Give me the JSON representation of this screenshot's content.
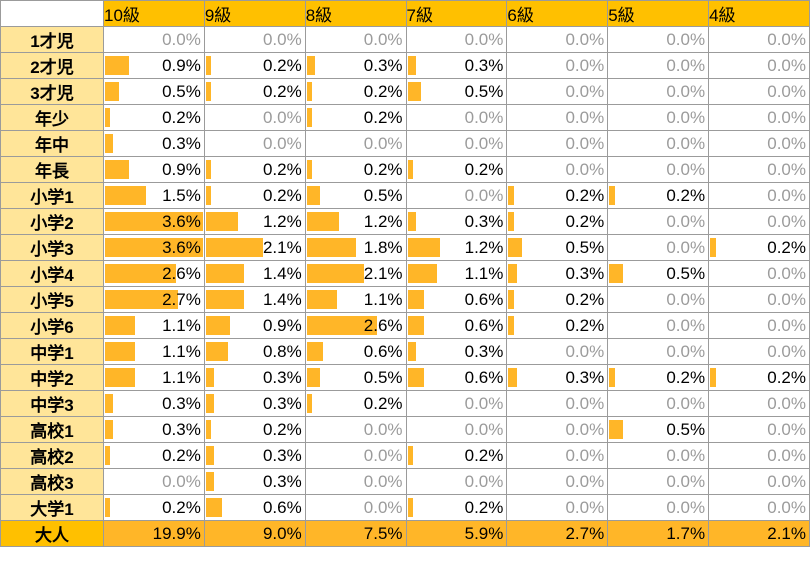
{
  "chart_data": {
    "type": "table",
    "columns": [
      "10級",
      "9級",
      "8級",
      "7級",
      "6級",
      "5級",
      "4級"
    ],
    "rows": [
      {
        "label": "1才児",
        "values": [
          "0.0%",
          "0.0%",
          "0.0%",
          "0.0%",
          "0.0%",
          "0.0%",
          "0.0%"
        ]
      },
      {
        "label": "2才児",
        "values": [
          "0.9%",
          "0.2%",
          "0.3%",
          "0.3%",
          "0.0%",
          "0.0%",
          "0.0%"
        ]
      },
      {
        "label": "3才児",
        "values": [
          "0.5%",
          "0.2%",
          "0.2%",
          "0.5%",
          "0.0%",
          "0.0%",
          "0.0%"
        ]
      },
      {
        "label": "年少",
        "values": [
          "0.2%",
          "0.0%",
          "0.2%",
          "0.0%",
          "0.0%",
          "0.0%",
          "0.0%"
        ]
      },
      {
        "label": "年中",
        "values": [
          "0.3%",
          "0.0%",
          "0.0%",
          "0.0%",
          "0.0%",
          "0.0%",
          "0.0%"
        ]
      },
      {
        "label": "年長",
        "values": [
          "0.9%",
          "0.2%",
          "0.2%",
          "0.2%",
          "0.0%",
          "0.0%",
          "0.0%"
        ]
      },
      {
        "label": "小学1",
        "values": [
          "1.5%",
          "0.2%",
          "0.5%",
          "0.0%",
          "0.2%",
          "0.2%",
          "0.0%"
        ]
      },
      {
        "label": "小学2",
        "values": [
          "3.6%",
          "1.2%",
          "1.2%",
          "0.3%",
          "0.2%",
          "0.0%",
          "0.0%"
        ]
      },
      {
        "label": "小学3",
        "values": [
          "3.6%",
          "2.1%",
          "1.8%",
          "1.2%",
          "0.5%",
          "0.0%",
          "0.2%"
        ]
      },
      {
        "label": "小学4",
        "values": [
          "2.6%",
          "1.4%",
          "2.1%",
          "1.1%",
          "0.3%",
          "0.5%",
          "0.0%"
        ]
      },
      {
        "label": "小学5",
        "values": [
          "2.7%",
          "1.4%",
          "1.1%",
          "0.6%",
          "0.2%",
          "0.0%",
          "0.0%"
        ]
      },
      {
        "label": "小学6",
        "values": [
          "1.1%",
          "0.9%",
          "2.6%",
          "0.6%",
          "0.2%",
          "0.0%",
          "0.0%"
        ]
      },
      {
        "label": "中学1",
        "values": [
          "1.1%",
          "0.8%",
          "0.6%",
          "0.3%",
          "0.0%",
          "0.0%",
          "0.0%"
        ]
      },
      {
        "label": "中学2",
        "values": [
          "1.1%",
          "0.3%",
          "0.5%",
          "0.6%",
          "0.3%",
          "0.2%",
          "0.2%"
        ]
      },
      {
        "label": "中学3",
        "values": [
          "0.3%",
          "0.3%",
          "0.2%",
          "0.0%",
          "0.0%",
          "0.0%",
          "0.0%"
        ]
      },
      {
        "label": "高校1",
        "values": [
          "0.3%",
          "0.2%",
          "0.0%",
          "0.0%",
          "0.0%",
          "0.5%",
          "0.0%"
        ]
      },
      {
        "label": "高校2",
        "values": [
          "0.2%",
          "0.3%",
          "0.0%",
          "0.2%",
          "0.0%",
          "0.0%",
          "0.0%"
        ]
      },
      {
        "label": "高校3",
        "values": [
          "0.0%",
          "0.3%",
          "0.0%",
          "0.0%",
          "0.0%",
          "0.0%",
          "0.0%"
        ]
      },
      {
        "label": "大学1",
        "values": [
          "0.2%",
          "0.6%",
          "0.0%",
          "0.2%",
          "0.0%",
          "0.0%",
          "0.0%"
        ]
      }
    ],
    "total_row": {
      "label": "大人",
      "values": [
        "19.9%",
        "9.0%",
        "7.5%",
        "5.9%",
        "2.7%",
        "1.7%",
        "2.1%"
      ]
    },
    "bar_scale_max_percent": 3.6
  },
  "colors": {
    "header_fill": "#ffc000",
    "row_label_fill": "#ffe599",
    "bar_fill": "#ffb628",
    "zero_text": "#9b9b9b",
    "grid_line": "#9b9b9b"
  }
}
